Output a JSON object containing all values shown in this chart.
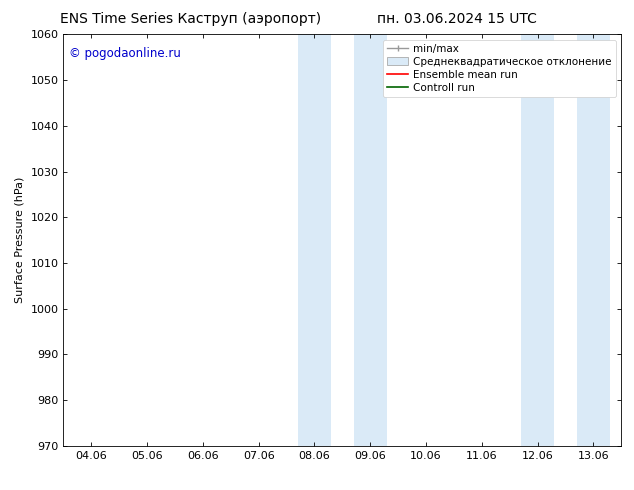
{
  "title_left": "ENS Time Series Каструп (аэропорт)",
  "title_right": "пн. 03.06.2024 15 UTC",
  "ylabel": "Surface Pressure (hPa)",
  "ylim": [
    970,
    1060
  ],
  "yticks": [
    970,
    980,
    990,
    1000,
    1010,
    1020,
    1030,
    1040,
    1050,
    1060
  ],
  "xtick_labels": [
    "04.06",
    "05.06",
    "06.06",
    "07.06",
    "08.06",
    "09.06",
    "10.06",
    "11.06",
    "12.06",
    "13.06"
  ],
  "xtick_positions": [
    0,
    1,
    2,
    3,
    4,
    5,
    6,
    7,
    8,
    9
  ],
  "xlim": [
    -0.5,
    9.5
  ],
  "shaded_regions": [
    {
      "x_start": 3.7,
      "x_end": 4.3,
      "color": "#daeaf7"
    },
    {
      "x_start": 4.7,
      "x_end": 5.3,
      "color": "#daeaf7"
    },
    {
      "x_start": 7.7,
      "x_end": 8.3,
      "color": "#daeaf7"
    },
    {
      "x_start": 8.7,
      "x_end": 9.3,
      "color": "#daeaf7"
    }
  ],
  "copyright_text": "© pogodaonline.ru",
  "copyright_color": "#0000cc",
  "background_color": "#ffffff",
  "legend_labels": [
    "min/max",
    "Среднеквадратическое отклонение",
    "Ensemble mean run",
    "Controll run"
  ],
  "title_fontsize": 10,
  "axis_fontsize": 8,
  "tick_fontsize": 8,
  "legend_fontsize": 7.5
}
